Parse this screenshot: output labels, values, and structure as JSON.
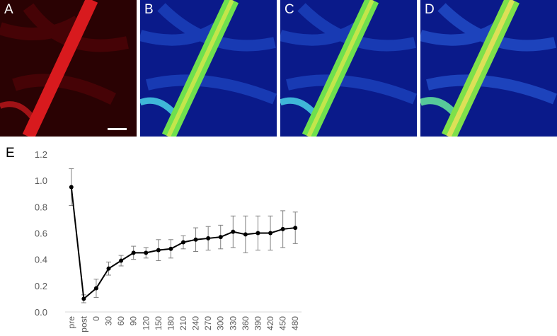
{
  "panels": [
    {
      "letter": "A",
      "style": "red"
    },
    {
      "letter": "B",
      "style": "jet"
    },
    {
      "letter": "C",
      "style": "jet"
    },
    {
      "letter": "D",
      "style": "jet"
    }
  ],
  "colors": {
    "red_bg": "#2a0203",
    "red_vessel": "#d81a1e",
    "jet_bg": "#0a1a8a",
    "jet_vessel": "#6fe04e",
    "line": "#000000",
    "errorbar": "#7f7f7f",
    "axis": "#d9d9d9"
  },
  "chart_data": {
    "type": "line",
    "panel_label": "E",
    "categories": [
      "pre",
      "post",
      "0",
      "30",
      "60",
      "90",
      "120",
      "150",
      "180",
      "210",
      "240",
      "270",
      "300",
      "330",
      "360",
      "390",
      "420",
      "450",
      "480"
    ],
    "series": [
      {
        "values": [
          0.95,
          0.1,
          0.18,
          0.33,
          0.39,
          0.45,
          0.45,
          0.47,
          0.48,
          0.53,
          0.55,
          0.56,
          0.57,
          0.61,
          0.59,
          0.6,
          0.6,
          0.63,
          0.64
        ],
        "errors": [
          0.14,
          0.03,
          0.07,
          0.05,
          0.04,
          0.05,
          0.04,
          0.08,
          0.07,
          0.05,
          0.09,
          0.09,
          0.09,
          0.12,
          0.14,
          0.13,
          0.13,
          0.14,
          0.12
        ]
      }
    ],
    "ylim": [
      0,
      1.2
    ],
    "yticks": [
      "0.0",
      "0.2",
      "0.4",
      "0.6",
      "0.8",
      "1.0",
      "1.2"
    ],
    "xlabel": "",
    "ylabel": "",
    "grid": false
  }
}
